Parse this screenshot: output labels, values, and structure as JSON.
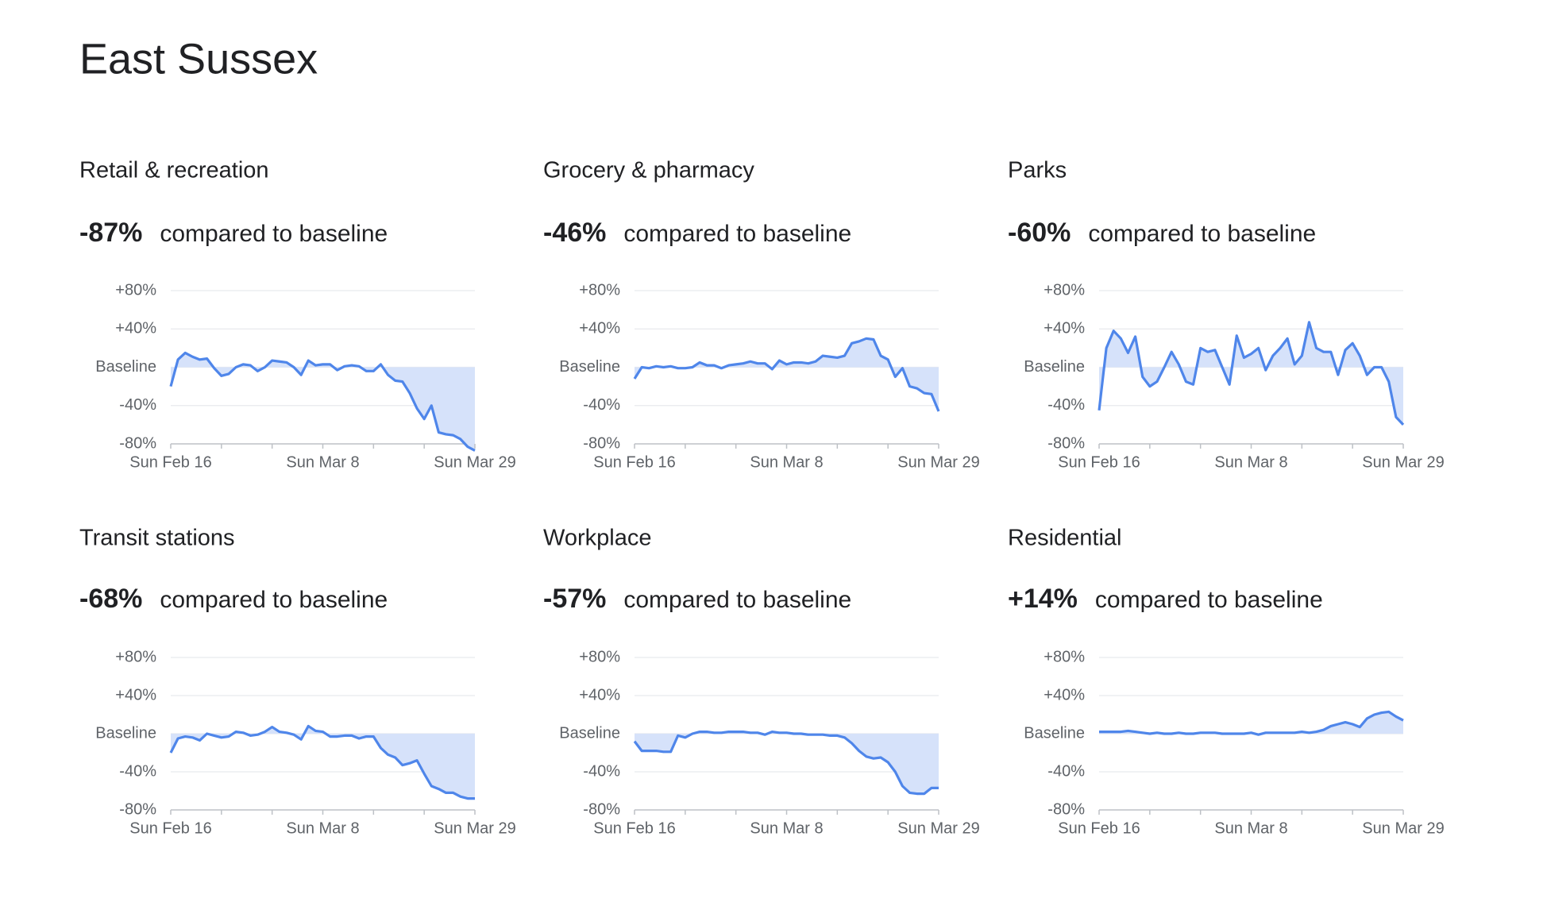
{
  "page_title": "East Sussex",
  "chart_data": [
    {
      "type": "line",
      "title": "Retail & recreation",
      "headline": "-87%",
      "subtitle": "compared to baseline",
      "categories": [
        "Sun Feb 16",
        null,
        null,
        null,
        null,
        null,
        null,
        null,
        null,
        null,
        null,
        null,
        null,
        null,
        null,
        null,
        null,
        null,
        null,
        null,
        null,
        "Sun Mar 8",
        null,
        null,
        null,
        null,
        null,
        null,
        null,
        null,
        null,
        null,
        null,
        null,
        null,
        null,
        null,
        null,
        null,
        null,
        null,
        null,
        "Sun Mar 29"
      ],
      "values": [
        -20,
        8,
        15,
        11,
        8,
        9,
        -1,
        -9,
        -7,
        0,
        3,
        2,
        -4,
        0,
        7,
        6,
        5,
        0,
        -8,
        7,
        2,
        3,
        3,
        -3,
        1,
        2,
        1,
        -4,
        -4,
        3,
        -8,
        -14,
        -15,
        -27,
        -43,
        -54,
        -40,
        -68,
        -70,
        -71,
        -75,
        -83,
        -87
      ],
      "color": "#4f86ea",
      "fill_color": "#d6e2fa",
      "grid": true,
      "ylim": [
        -80,
        80
      ],
      "yticks": [
        {
          "value": 80,
          "label": "+80%"
        },
        {
          "value": 40,
          "label": "+40%"
        },
        {
          "value": 0,
          "label": "Baseline"
        },
        {
          "value": -40,
          "label": "-40%"
        },
        {
          "value": -80,
          "label": "-80%"
        }
      ]
    },
    {
      "type": "line",
      "title": "Grocery & pharmacy",
      "headline": "-46%",
      "subtitle": "compared to baseline",
      "categories": [
        "Sun Feb 16",
        null,
        null,
        null,
        null,
        null,
        null,
        null,
        null,
        null,
        null,
        null,
        null,
        null,
        null,
        null,
        null,
        null,
        null,
        null,
        null,
        "Sun Mar 8",
        null,
        null,
        null,
        null,
        null,
        null,
        null,
        null,
        null,
        null,
        null,
        null,
        null,
        null,
        null,
        null,
        null,
        null,
        null,
        null,
        "Sun Mar 29"
      ],
      "values": [
        -12,
        0,
        -1,
        1,
        0,
        1,
        -1,
        -1,
        0,
        5,
        2,
        2,
        -1,
        2,
        3,
        4,
        6,
        4,
        4,
        -2,
        7,
        3,
        5,
        5,
        4,
        6,
        12,
        11,
        10,
        12,
        25,
        27,
        30,
        29,
        12,
        8,
        -10,
        -1,
        -20,
        -22,
        -27,
        -28,
        -46
      ],
      "color": "#4f86ea",
      "fill_color": "#d6e2fa",
      "grid": true,
      "ylim": [
        -80,
        80
      ],
      "yticks": [
        {
          "value": 80,
          "label": "+80%"
        },
        {
          "value": 40,
          "label": "+40%"
        },
        {
          "value": 0,
          "label": "Baseline"
        },
        {
          "value": -40,
          "label": "-40%"
        },
        {
          "value": -80,
          "label": "-80%"
        }
      ]
    },
    {
      "type": "line",
      "title": "Parks",
      "headline": "-60%",
      "subtitle": "compared to baseline",
      "categories": [
        "Sun Feb 16",
        null,
        null,
        null,
        null,
        null,
        null,
        null,
        null,
        null,
        null,
        null,
        null,
        null,
        null,
        null,
        null,
        null,
        null,
        null,
        null,
        "Sun Mar 8",
        null,
        null,
        null,
        null,
        null,
        null,
        null,
        null,
        null,
        null,
        null,
        null,
        null,
        null,
        null,
        null,
        null,
        null,
        null,
        null,
        "Sun Mar 29"
      ],
      "values": [
        -45,
        20,
        38,
        30,
        15,
        32,
        -10,
        -20,
        -15,
        0,
        16,
        3,
        -15,
        -18,
        20,
        16,
        18,
        0,
        -18,
        33,
        10,
        14,
        20,
        -3,
        12,
        20,
        30,
        3,
        12,
        47,
        20,
        16,
        16,
        -8,
        18,
        25,
        12,
        -8,
        0,
        0,
        -15,
        -52,
        -60
      ],
      "color": "#4f86ea",
      "fill_color": "#d6e2fa",
      "grid": true,
      "ylim": [
        -80,
        80
      ],
      "yticks": [
        {
          "value": 80,
          "label": "+80%"
        },
        {
          "value": 40,
          "label": "+40%"
        },
        {
          "value": 0,
          "label": "Baseline"
        },
        {
          "value": -40,
          "label": "-40%"
        },
        {
          "value": -80,
          "label": "-80%"
        }
      ]
    },
    {
      "type": "line",
      "title": "Transit stations",
      "headline": "-68%",
      "subtitle": "compared to baseline",
      "categories": [
        "Sun Feb 16",
        null,
        null,
        null,
        null,
        null,
        null,
        null,
        null,
        null,
        null,
        null,
        null,
        null,
        null,
        null,
        null,
        null,
        null,
        null,
        null,
        "Sun Mar 8",
        null,
        null,
        null,
        null,
        null,
        null,
        null,
        null,
        null,
        null,
        null,
        null,
        null,
        null,
        null,
        null,
        null,
        null,
        null,
        null,
        "Sun Mar 29"
      ],
      "values": [
        -20,
        -5,
        -3,
        -4,
        -7,
        0,
        -2,
        -4,
        -3,
        2,
        1,
        -2,
        -1,
        2,
        7,
        2,
        1,
        -1,
        -6,
        8,
        3,
        2,
        -3,
        -3,
        -2,
        -2,
        -5,
        -3,
        -3,
        -15,
        -22,
        -25,
        -33,
        -31,
        -28,
        -42,
        -55,
        -58,
        -62,
        -62,
        -66,
        -68,
        -68
      ],
      "color": "#4f86ea",
      "fill_color": "#d6e2fa",
      "grid": true,
      "ylim": [
        -80,
        80
      ],
      "yticks": [
        {
          "value": 80,
          "label": "+80%"
        },
        {
          "value": 40,
          "label": "+40%"
        },
        {
          "value": 0,
          "label": "Baseline"
        },
        {
          "value": -40,
          "label": "-40%"
        },
        {
          "value": -80,
          "label": "-80%"
        }
      ]
    },
    {
      "type": "line",
      "title": "Workplace",
      "headline": "-57%",
      "subtitle": "compared to baseline",
      "categories": [
        "Sun Feb 16",
        null,
        null,
        null,
        null,
        null,
        null,
        null,
        null,
        null,
        null,
        null,
        null,
        null,
        null,
        null,
        null,
        null,
        null,
        null,
        null,
        "Sun Mar 8",
        null,
        null,
        null,
        null,
        null,
        null,
        null,
        null,
        null,
        null,
        null,
        null,
        null,
        null,
        null,
        null,
        null,
        null,
        null,
        null,
        "Sun Mar 29"
      ],
      "values": [
        -8,
        -18,
        -18,
        -18,
        -19,
        -19,
        -2,
        -4,
        0,
        2,
        2,
        1,
        1,
        2,
        2,
        2,
        1,
        1,
        -1,
        2,
        1,
        1,
        0,
        0,
        -1,
        -1,
        -1,
        -2,
        -2,
        -4,
        -10,
        -18,
        -24,
        -26,
        -25,
        -30,
        -40,
        -55,
        -62,
        -63,
        -63,
        -57,
        -57
      ],
      "color": "#4f86ea",
      "fill_color": "#d6e2fa",
      "grid": true,
      "ylim": [
        -80,
        80
      ],
      "yticks": [
        {
          "value": 80,
          "label": "+80%"
        },
        {
          "value": 40,
          "label": "+40%"
        },
        {
          "value": 0,
          "label": "Baseline"
        },
        {
          "value": -40,
          "label": "-40%"
        },
        {
          "value": -80,
          "label": "-80%"
        }
      ]
    },
    {
      "type": "line",
      "title": "Residential",
      "headline": "+14%",
      "subtitle": "compared to baseline",
      "categories": [
        "Sun Feb 16",
        null,
        null,
        null,
        null,
        null,
        null,
        null,
        null,
        null,
        null,
        null,
        null,
        null,
        null,
        null,
        null,
        null,
        null,
        null,
        null,
        "Sun Mar 8",
        null,
        null,
        null,
        null,
        null,
        null,
        null,
        null,
        null,
        null,
        null,
        null,
        null,
        null,
        null,
        null,
        null,
        null,
        null,
        null,
        "Sun Mar 29"
      ],
      "values": [
        2,
        2,
        2,
        2,
        3,
        2,
        1,
        0,
        1,
        0,
        0,
        1,
        0,
        0,
        1,
        1,
        1,
        0,
        0,
        0,
        0,
        1,
        -1,
        1,
        1,
        1,
        1,
        1,
        2,
        1,
        2,
        4,
        8,
        10,
        12,
        10,
        7,
        16,
        20,
        22,
        23,
        18,
        14
      ],
      "color": "#4f86ea",
      "fill_color": "#d6e2fa",
      "grid": true,
      "ylim": [
        -80,
        80
      ],
      "yticks": [
        {
          "value": 80,
          "label": "+80%"
        },
        {
          "value": 40,
          "label": "+40%"
        },
        {
          "value": 0,
          "label": "Baseline"
        },
        {
          "value": -40,
          "label": "-40%"
        },
        {
          "value": -80,
          "label": "-80%"
        }
      ]
    }
  ]
}
